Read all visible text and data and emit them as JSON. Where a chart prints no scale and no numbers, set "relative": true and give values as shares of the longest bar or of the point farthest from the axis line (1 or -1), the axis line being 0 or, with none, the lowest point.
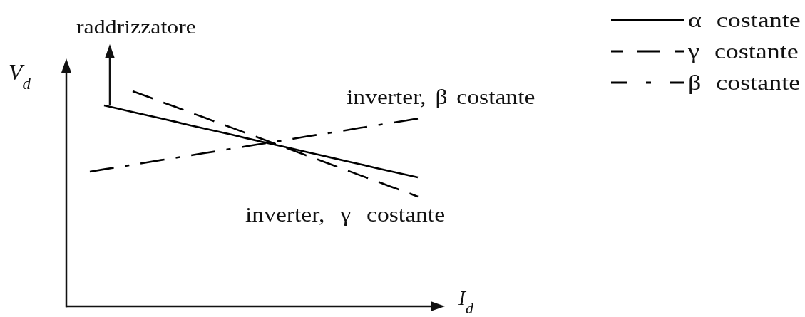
{
  "chart_data": {
    "type": "line",
    "relative": true,
    "xlabel": "I$_{d}$",
    "ylabel": "V$_{d}$",
    "categories": [
      null,
      null,
      null,
      null,
      null,
      null,
      null,
      null,
      null,
      null,
      null,
      null,
      null,
      null,
      null,
      null,
      null,
      null,
      null,
      null,
      null,
      null,
      null,
      null
    ],
    "series": [
      {
        "name": "α costante",
        "color": "#000000",
        "line_style": "solid",
        "values": [
          null,
          0.934,
          0.919,
          0.903,
          0.888,
          0.873,
          0.858,
          0.842,
          0.827,
          0.812,
          0.797,
          0.781,
          0.766,
          0.751,
          0.736,
          0.72,
          0.705,
          0.69,
          0.675,
          0.66,
          0.644,
          0.629,
          0.614,
          0.599
        ]
      },
      {
        "name": "γ costante",
        "color": "#000000",
        "line_style": "dashed",
        "values": [
          null,
          null,
          null,
          1,
          0.976,
          0.951,
          0.927,
          0.902,
          0.878,
          0.853,
          0.829,
          0.804,
          0.78,
          0.755,
          0.731,
          0.706,
          0.682,
          0.657,
          0.633,
          0.608,
          0.584,
          0.559,
          0.535,
          0.51
        ]
      },
      {
        "name": "β costante",
        "color": "#000000",
        "line_style": "dashdot",
        "values": [
          0.626,
          0.637,
          0.647,
          0.658,
          0.669,
          0.68,
          0.69,
          0.701,
          0.712,
          0.722,
          0.733,
          0.744,
          0.755,
          0.765,
          0.776,
          0.787,
          0.798,
          0.808,
          0.819,
          0.83,
          0.84,
          0.851,
          0.862,
          0.873
        ]
      }
    ],
    "legend": "top right",
    "annotations": [
      "raddrizzatore",
      "inverter, β costante",
      "inverter, γ costante"
    ]
  }
}
